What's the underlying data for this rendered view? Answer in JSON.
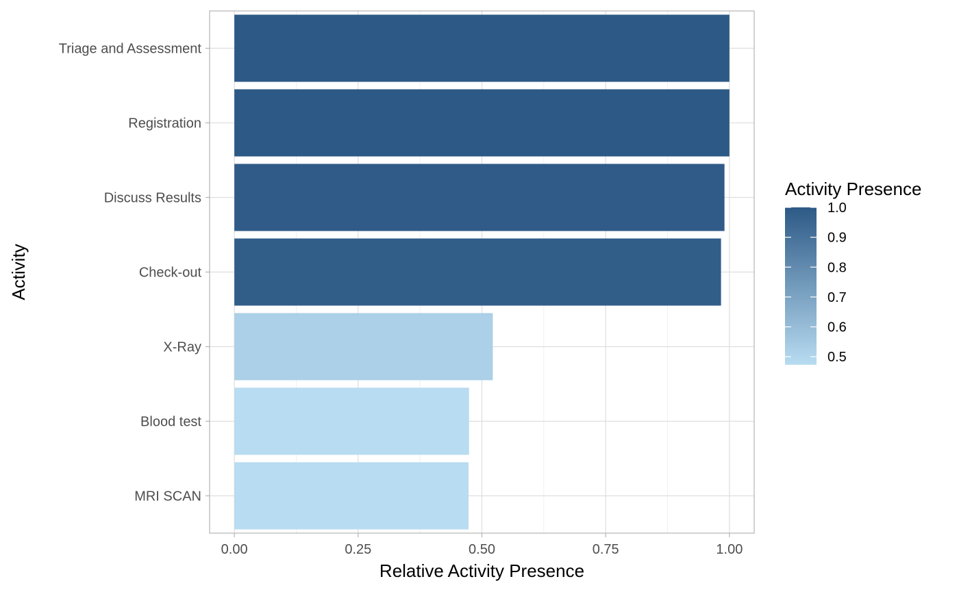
{
  "chart_data": {
    "type": "bar",
    "orientation": "horizontal",
    "xlabel": "Relative Activity Presence",
    "ylabel": "Activity",
    "xlim": [
      -0.05,
      1.05
    ],
    "x_ticks": [
      0,
      0.25,
      0.5,
      0.75,
      1.0
    ],
    "x_tick_labels": [
      "0.00",
      "0.25",
      "0.50",
      "0.75",
      "1.00"
    ],
    "categories": [
      "Triage and Assessment",
      "Registration",
      "Discuss Results",
      "Check-out",
      "X-Ray",
      "Blood test",
      "MRI SCAN"
    ],
    "values": [
      1.0,
      1.0,
      0.99,
      0.983,
      0.522,
      0.474,
      0.473
    ],
    "grid": true,
    "legend": {
      "title": "Activity Presence",
      "placement": "right",
      "ticks": [
        1.0,
        0.9,
        0.8,
        0.7,
        0.6,
        0.5
      ],
      "tick_labels": [
        "1.0",
        "0.9",
        "0.8",
        "0.7",
        "0.6",
        "0.5"
      ],
      "range": [
        0.473,
        1.0
      ],
      "color_low": "#b8dcf1",
      "color_high": "#2d5986"
    }
  }
}
